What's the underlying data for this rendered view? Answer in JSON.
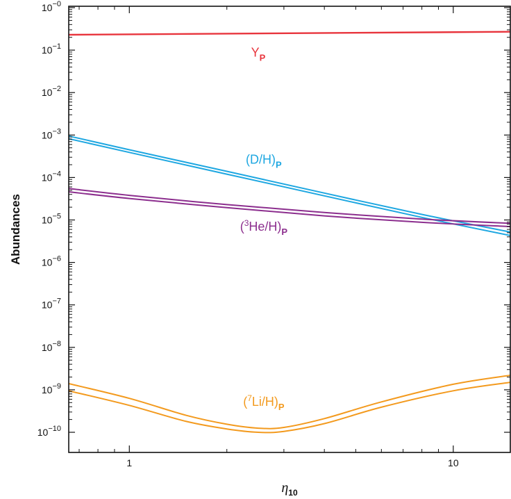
{
  "chart_data": {
    "type": "line",
    "title": "",
    "xlabel": "η",
    "xlabel_sub": "10",
    "ylabel": "Abundances",
    "xscale": "log",
    "yscale": "log",
    "xlim": [
      0.65,
      15
    ],
    "ylim": [
      1e-10,
      1
    ],
    "grid": false,
    "x_ticks": [
      {
        "value": 1,
        "label": "1"
      },
      {
        "value": 10,
        "label": "10"
      }
    ],
    "y_ticks": [
      {
        "value": 1,
        "base": "10",
        "exp": "−0"
      },
      {
        "value": 0.1,
        "base": "10",
        "exp": "−1"
      },
      {
        "value": 0.01,
        "base": "10",
        "exp": "−2"
      },
      {
        "value": 0.001,
        "base": "10",
        "exp": "−3"
      },
      {
        "value": 0.0001,
        "base": "10",
        "exp": "−4"
      },
      {
        "value": 1e-05,
        "base": "10",
        "exp": "−5"
      },
      {
        "value": 1e-06,
        "base": "10",
        "exp": "−6"
      },
      {
        "value": 1e-07,
        "base": "10",
        "exp": "−7"
      },
      {
        "value": 1e-08,
        "base": "10",
        "exp": "−8"
      },
      {
        "value": 1e-09,
        "base": "10",
        "exp": "−9"
      },
      {
        "value": 1e-10,
        "base": "10",
        "exp": "−10"
      }
    ],
    "series": [
      {
        "label_main": "Y",
        "label_pre": "",
        "label_sup": "",
        "label_sub": "P",
        "color": "#e8343c",
        "double": false,
        "label_at": [
          2.5,
          0.07
        ],
        "upper": {
          "x": [
            0.65,
            15
          ],
          "y": [
            0.23,
            0.27
          ]
        },
        "lower": {
          "x": [
            0.65,
            15
          ],
          "y": [
            0.23,
            0.27
          ]
        }
      },
      {
        "label_main": "(D/H)",
        "label_pre": "",
        "label_sup": "",
        "label_sub": "P",
        "color": "#1ea7e1",
        "double": true,
        "label_at": [
          2.6,
          0.00021
        ],
        "upper": {
          "x": [
            0.65,
            1,
            2,
            4,
            8,
            15
          ],
          "y": [
            0.00095,
            0.00045,
            0.00014,
            4.3e-05,
            1.35e-05,
            5.2e-06
          ]
        },
        "lower": {
          "x": [
            0.65,
            1,
            2,
            4,
            8,
            15
          ],
          "y": [
            0.00082,
            0.00039,
            0.00012,
            3.7e-05,
            1.15e-05,
            4.3e-06
          ]
        }
      },
      {
        "label_main": "He/H)",
        "label_pre": "(",
        "label_sup": "3",
        "label_sub": "P",
        "color": "#8c2e8e",
        "double": true,
        "label_at": [
          2.6,
          5.6e-06
        ],
        "upper": {
          "x": [
            0.65,
            1,
            2,
            4,
            8,
            15
          ],
          "y": [
            5.5e-05,
            3.8e-05,
            2.3e-05,
            1.5e-05,
            1.05e-05,
            8.3e-06
          ]
        },
        "lower": {
          "x": [
            0.65,
            1,
            2,
            4,
            8,
            15
          ],
          "y": [
            4.6e-05,
            3.2e-05,
            1.95e-05,
            1.25e-05,
            8.8e-06,
            7e-06
          ]
        }
      },
      {
        "label_main": "Li/H)",
        "label_pre": "(",
        "label_sup": "7",
        "label_sub": "P",
        "color": "#f39a1e",
        "double": true,
        "label_at": [
          2.6,
          4.2e-10
        ],
        "upper": {
          "x": [
            0.65,
            1,
            1.5,
            2,
            2.5,
            3,
            4,
            6,
            10,
            15
          ],
          "y": [
            1.4e-09,
            6.3e-10,
            2.5e-10,
            1.55e-10,
            1.25e-10,
            1.3e-10,
            2.1e-10,
            5.2e-10,
            1.35e-09,
            2.2e-09
          ]
        },
        "lower": {
          "x": [
            0.65,
            1,
            1.5,
            2,
            2.5,
            3,
            4,
            6,
            10,
            15
          ],
          "y": [
            9.5e-10,
            4.3e-10,
            1.8e-10,
            1.2e-10,
            1e-10,
            1.05e-10,
            1.6e-10,
            3.9e-10,
            9.5e-10,
            1.5e-09
          ]
        }
      }
    ]
  }
}
